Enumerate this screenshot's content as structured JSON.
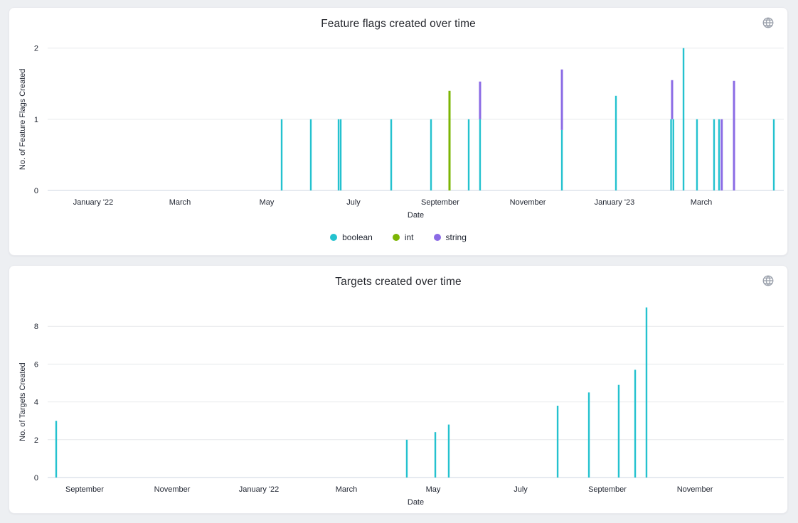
{
  "page": {
    "background": "#edeff2",
    "header_icon": "globe-icon"
  },
  "chart_data": [
    {
      "type": "bar",
      "title": "Feature flags created over time",
      "xlabel": "Date",
      "ylabel": "No. of Feature Flags Created",
      "ylim": [
        0,
        2
      ],
      "yticks": [
        0,
        1,
        2
      ],
      "grid": "horizontal",
      "legend_position": "bottom-center",
      "x_tick_labels": [
        "January '22",
        "March",
        "May",
        "July",
        "September",
        "November",
        "January '23",
        "March"
      ],
      "x_tick_pos": [
        0.0618,
        0.1797,
        0.2976,
        0.4155,
        0.5333,
        0.6522,
        0.77,
        0.8879
      ],
      "series_colors": {
        "boolean": "#24C2CF",
        "int": "#7CB504",
        "string": "#8B6BE5"
      },
      "legend": [
        {
          "label": "boolean",
          "color": "#24C2CF"
        },
        {
          "label": "int",
          "color": "#7CB504"
        },
        {
          "label": "string",
          "color": "#8B6BE5"
        }
      ],
      "bars": [
        {
          "x": 0.3179,
          "segments": [
            {
              "series": "boolean",
              "from": 0,
              "to": 1
            }
          ]
        },
        {
          "x": 0.3575,
          "segments": [
            {
              "series": "boolean",
              "from": 0,
              "to": 1
            }
          ]
        },
        {
          "x": 0.3952,
          "segments": [
            {
              "series": "boolean",
              "from": 0,
              "to": 1
            }
          ]
        },
        {
          "x": 0.3981,
          "segments": [
            {
              "series": "boolean",
              "from": 0,
              "to": 1
            }
          ]
        },
        {
          "x": 0.4667,
          "segments": [
            {
              "series": "boolean",
              "from": 0,
              "to": 1
            }
          ]
        },
        {
          "x": 0.5208,
          "segments": [
            {
              "series": "boolean",
              "from": 0,
              "to": 1
            }
          ]
        },
        {
          "x": 0.5459,
          "segments": [
            {
              "series": "int",
              "from": 0,
              "to": 1.4
            }
          ]
        },
        {
          "x": 0.572,
          "segments": [
            {
              "series": "boolean",
              "from": 0,
              "to": 1
            }
          ]
        },
        {
          "x": 0.5874,
          "segments": [
            {
              "series": "boolean",
              "from": 0,
              "to": 1
            },
            {
              "series": "string",
              "from": 1,
              "to": 1.53
            }
          ]
        },
        {
          "x": 0.6986,
          "segments": [
            {
              "series": "boolean",
              "from": 0,
              "to": 0.85
            },
            {
              "series": "string",
              "from": 0.85,
              "to": 1.7
            }
          ]
        },
        {
          "x": 0.772,
          "segments": [
            {
              "series": "boolean",
              "from": 0,
              "to": 1.33
            }
          ]
        },
        {
          "x": 0.8483,
          "segments": [
            {
              "series": "string",
              "from": 1,
              "to": 1.55
            }
          ]
        },
        {
          "x": 0.8469,
          "segments": [
            {
              "series": "boolean",
              "from": 0,
              "to": 1
            }
          ]
        },
        {
          "x": 0.85,
          "segments": [
            {
              "series": "boolean",
              "from": 0,
              "to": 1
            }
          ]
        },
        {
          "x": 0.8638,
          "segments": [
            {
              "series": "boolean",
              "from": 0,
              "to": 2
            }
          ]
        },
        {
          "x": 0.8821,
          "segments": [
            {
              "series": "boolean",
              "from": 0,
              "to": 1
            }
          ]
        },
        {
          "x": 0.9053,
          "segments": [
            {
              "series": "boolean",
              "from": 0,
              "to": 1
            }
          ]
        },
        {
          "x": 0.9121,
          "segments": [
            {
              "series": "boolean",
              "from": 0,
              "to": 1
            }
          ]
        },
        {
          "x": 0.9157,
          "segments": [
            {
              "series": "string",
              "from": 0,
              "to": 1
            }
          ]
        },
        {
          "x": 0.9324,
          "segments": [
            {
              "series": "string",
              "from": 0,
              "to": 1.54
            }
          ]
        },
        {
          "x": 0.9865,
          "segments": [
            {
              "series": "boolean",
              "from": 0,
              "to": 1
            }
          ]
        }
      ]
    },
    {
      "type": "bar",
      "title": "Targets created over time",
      "xlabel": "Date",
      "ylabel": "No. of Targets Created",
      "ylim": [
        0,
        9.3
      ],
      "yticks": [
        0,
        2,
        4,
        6,
        8
      ],
      "grid": "horizontal",
      "legend_position": "none",
      "x_tick_labels": [
        "September",
        "November",
        "January '22",
        "March",
        "May",
        "July",
        "September",
        "November"
      ],
      "x_tick_pos": [
        0.0502,
        0.1691,
        0.287,
        0.4058,
        0.5237,
        0.6425,
        0.7604,
        0.8793
      ],
      "series_colors": {
        "targets": "#24C2CF"
      },
      "legend": [],
      "bars": [
        {
          "x": 0.0116,
          "segments": [
            {
              "series": "targets",
              "from": 0,
              "to": 3
            }
          ]
        },
        {
          "x": 0.4879,
          "segments": [
            {
              "series": "targets",
              "from": 0,
              "to": 2
            }
          ]
        },
        {
          "x": 0.5266,
          "segments": [
            {
              "series": "targets",
              "from": 0,
              "to": 2.4
            }
          ]
        },
        {
          "x": 0.5449,
          "segments": [
            {
              "series": "targets",
              "from": 0,
              "to": 2.8
            }
          ]
        },
        {
          "x": 0.6928,
          "segments": [
            {
              "series": "targets",
              "from": 0,
              "to": 3.8
            }
          ]
        },
        {
          "x": 0.7353,
          "segments": [
            {
              "series": "targets",
              "from": 0,
              "to": 4.5
            }
          ]
        },
        {
          "x": 0.7758,
          "segments": [
            {
              "series": "targets",
              "from": 0,
              "to": 4.9
            }
          ]
        },
        {
          "x": 0.7981,
          "segments": [
            {
              "series": "targets",
              "from": 0,
              "to": 5.7
            }
          ]
        },
        {
          "x": 0.8135,
          "segments": [
            {
              "series": "targets",
              "from": 0,
              "to": 9
            }
          ]
        }
      ]
    }
  ]
}
